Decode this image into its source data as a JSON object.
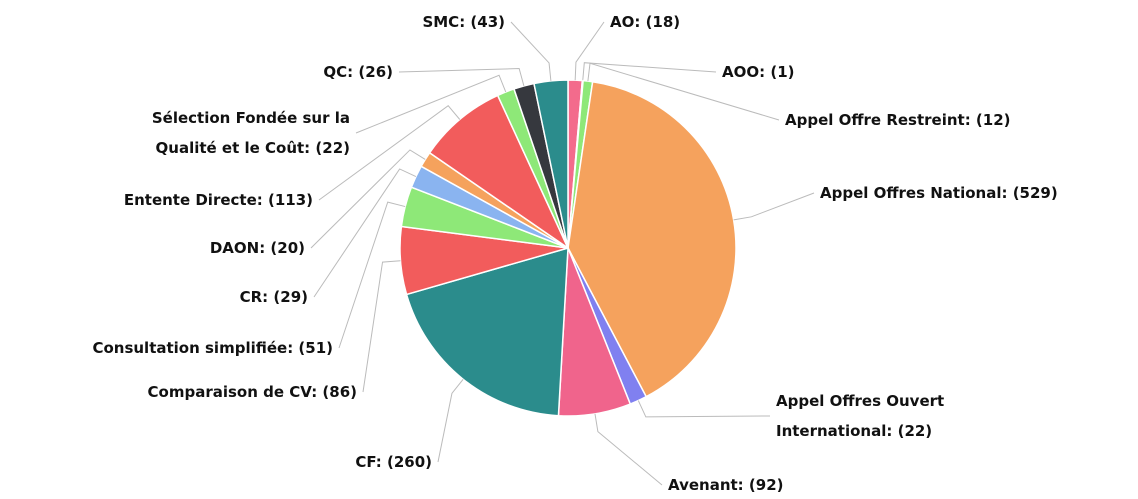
{
  "chart_data": {
    "type": "pie",
    "categories": [
      "AO: (18)",
      "AOO: (1)",
      "Appel Offre Restreint: (12)",
      "Appel Offres National: (529)",
      "Appel Offres Ouvert\nInternational: (22)",
      "Avenant: (92)",
      "CF: (260)",
      "Comparaison de CV: (86)",
      "Consultation simplifiée: (51)",
      "CR: (29)",
      "DAON: (20)",
      "Entente Directe: (113)",
      "Sélection Fondée sur la\nQualité et le Coût: (22)",
      "QC: (26)",
      "SMC: (43)"
    ],
    "values": [
      18,
      1,
      12,
      529,
      22,
      92,
      260,
      86,
      51,
      29,
      20,
      113,
      22,
      26,
      43
    ],
    "colors": [
      "#f36b8c",
      "#8c8cf0",
      "#8ee878",
      "#f5a25d",
      "#8080f0",
      "#f0648c",
      "#2b8c8c",
      "#f25c5c",
      "#8ee878",
      "#8ab4f0",
      "#f5a25d",
      "#f25c5c",
      "#8ee878",
      "#36383e",
      "#2b8c8c"
    ]
  }
}
